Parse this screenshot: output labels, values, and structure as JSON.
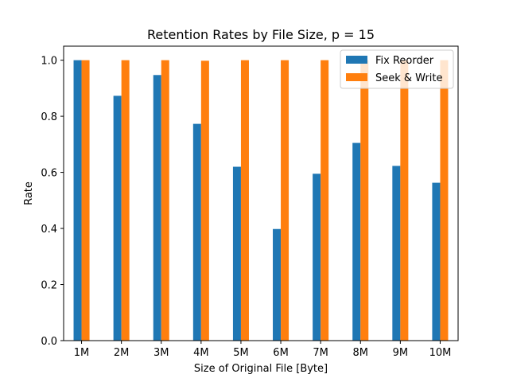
{
  "chart_data": {
    "type": "bar",
    "title": "Retention Rates by File Size, p = 15",
    "xlabel": "Size of Original File [Byte]",
    "ylabel": "Rate",
    "categories": [
      "1M",
      "2M",
      "3M",
      "4M",
      "5M",
      "6M",
      "7M",
      "8M",
      "9M",
      "10M"
    ],
    "series": [
      {
        "name": "Fix Reorder",
        "color": "#1f77b4",
        "values": [
          1.0,
          0.873,
          0.947,
          0.773,
          0.62,
          0.398,
          0.595,
          0.705,
          0.623,
          0.563
        ]
      },
      {
        "name": "Seek & Write",
        "color": "#ff7f0e",
        "values": [
          1.0,
          1.0,
          1.0,
          0.998,
          1.0,
          1.0,
          1.0,
          1.0,
          1.0,
          1.0
        ]
      }
    ],
    "ylim": [
      0,
      1.05
    ],
    "yticks": [
      0.0,
      0.2,
      0.4,
      0.6,
      0.8,
      1.0
    ],
    "ytick_labels": [
      "0.0",
      "0.2",
      "0.4",
      "0.6",
      "0.8",
      "1.0"
    ],
    "grid": false,
    "legend_position": "top-right"
  }
}
